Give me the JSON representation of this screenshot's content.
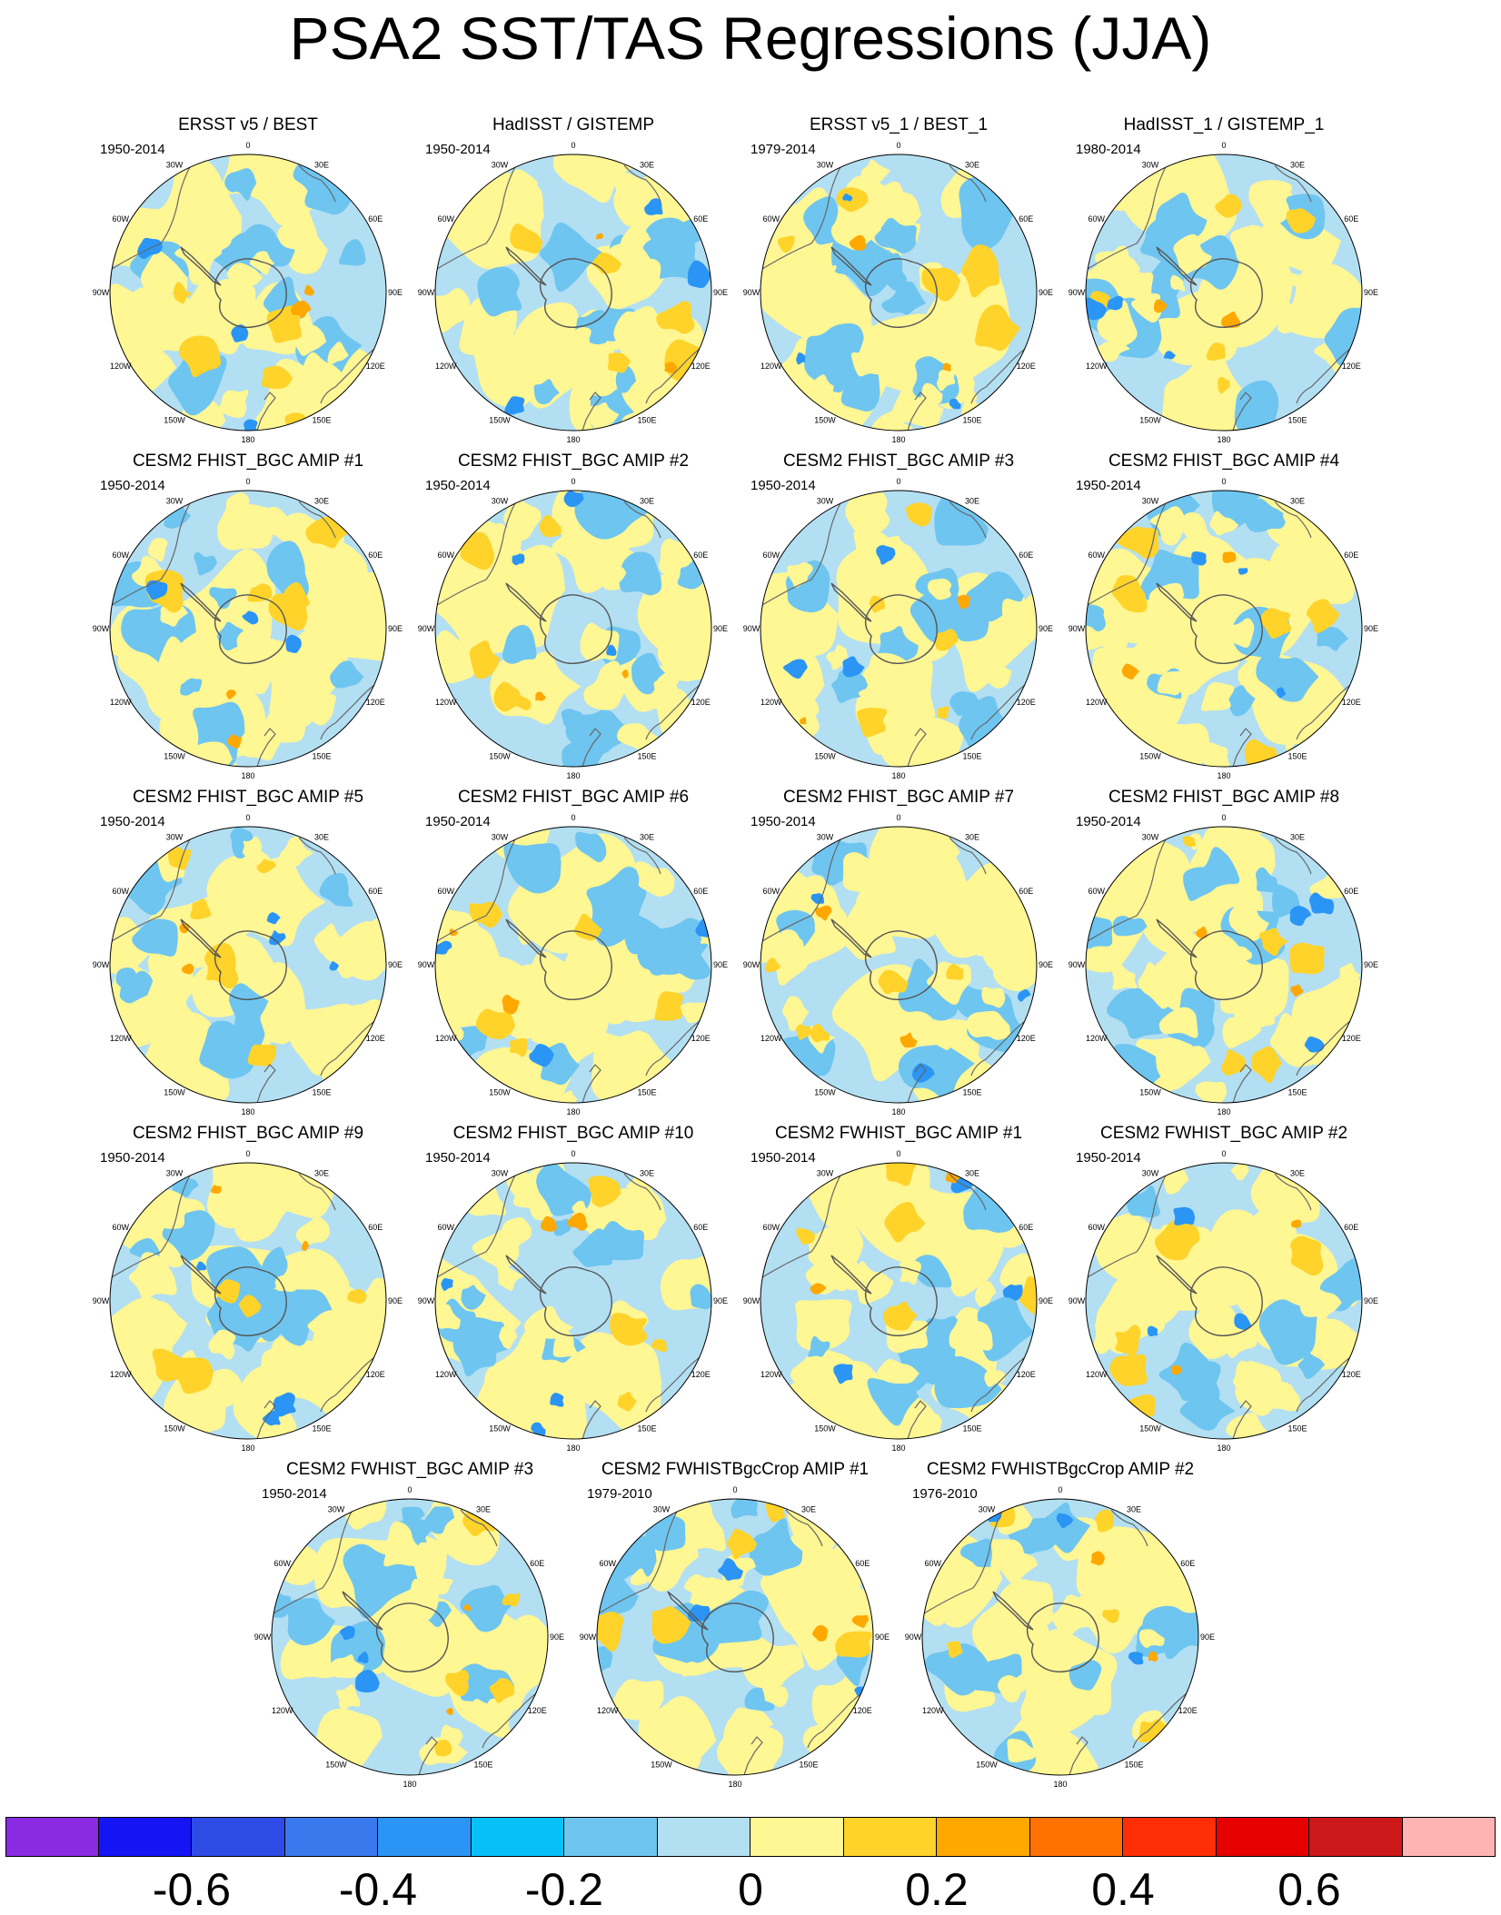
{
  "title": "PSA2 SST/TAS Regressions (JJA)",
  "longitude_labels": [
    "0",
    "30E",
    "60E",
    "90E",
    "120E",
    "150E",
    "180",
    "150W",
    "120W",
    "90W",
    "60W",
    "30W"
  ],
  "panels": [
    {
      "title": "ERSST v5 / BEST",
      "years": "1950-2014"
    },
    {
      "title": "HadISST / GISTEMP",
      "years": "1950-2014"
    },
    {
      "title": "ERSST v5_1 / BEST_1",
      "years": "1979-2014"
    },
    {
      "title": "HadISST_1 / GISTEMP_1",
      "years": "1980-2014"
    },
    {
      "title": "CESM2 FHIST_BGC AMIP #1",
      "years": "1950-2014"
    },
    {
      "title": "CESM2 FHIST_BGC AMIP #2",
      "years": "1950-2014"
    },
    {
      "title": "CESM2 FHIST_BGC AMIP #3",
      "years": "1950-2014"
    },
    {
      "title": "CESM2 FHIST_BGC AMIP #4",
      "years": "1950-2014"
    },
    {
      "title": "CESM2 FHIST_BGC AMIP #5",
      "years": "1950-2014"
    },
    {
      "title": "CESM2 FHIST_BGC AMIP #6",
      "years": "1950-2014"
    },
    {
      "title": "CESM2 FHIST_BGC AMIP #7",
      "years": "1950-2014"
    },
    {
      "title": "CESM2 FHIST_BGC AMIP #8",
      "years": "1950-2014"
    },
    {
      "title": "CESM2 FHIST_BGC AMIP #9",
      "years": "1950-2014"
    },
    {
      "title": "CESM2 FHIST_BGC AMIP #10",
      "years": "1950-2014"
    },
    {
      "title": "CESM2 FWHIST_BGC AMIP #1",
      "years": "1950-2014"
    },
    {
      "title": "CESM2 FWHIST_BGC AMIP #2",
      "years": "1950-2014"
    },
    {
      "title": "CESM2 FWHIST_BGC AMIP #3",
      "years": "1950-2014"
    },
    {
      "title": "CESM2 FWHISTBgcCrop AMIP #1",
      "years": "1979-2010"
    },
    {
      "title": "CESM2 FWHISTBgcCrop AMIP #2",
      "years": "1976-2010"
    }
  ],
  "colorbar": {
    "colors": [
      "#8a2be2",
      "#1414f5",
      "#2e4be6",
      "#3a78ee",
      "#2a95f5",
      "#08c0f8",
      "#6ec5f0",
      "#b3dff2",
      "#fff694",
      "#ffd32a",
      "#ffa800",
      "#ff7200",
      "#ff2e05",
      "#e60000",
      "#cc1818",
      "#ffb3b3"
    ],
    "tick_labels": [
      "-0.6",
      "-0.4",
      "-0.2",
      "0",
      "0.2",
      "0.4",
      "0.6"
    ],
    "tick_values": [
      -0.6,
      -0.4,
      -0.2,
      0,
      0.2,
      0.4,
      0.6
    ]
  },
  "palette": {
    "ocean_neutral": "#b3dff2",
    "light_blue": "#6ec5f0",
    "blue": "#2a95f5",
    "yellow": "#fff694",
    "gold": "#ffd32a",
    "orange": "#ffa800"
  }
}
